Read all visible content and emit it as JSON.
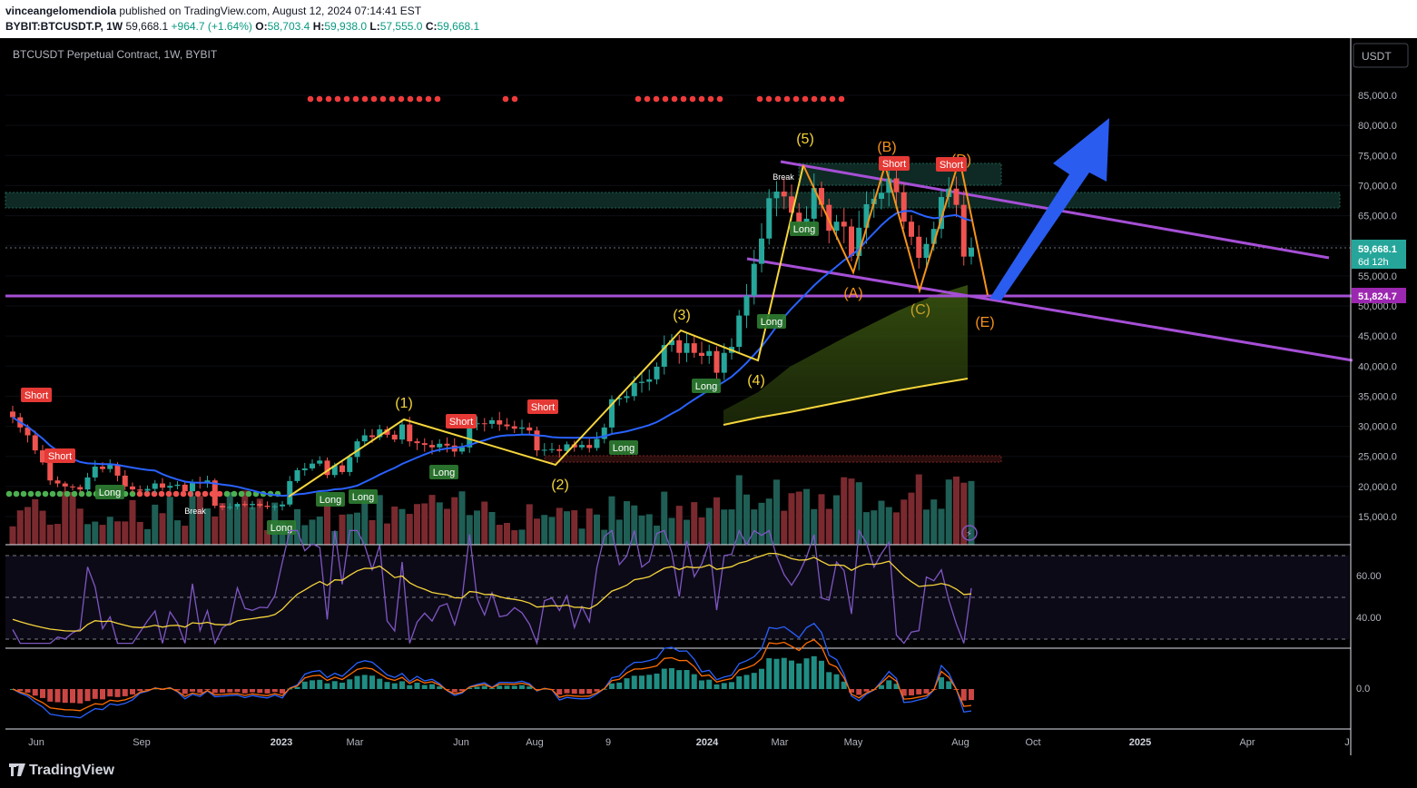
{
  "header": {
    "author": "vinceangelomendiola",
    "published": "published on TradingView.com, August 12, 2024 07:14:41 EST",
    "symbol": "BYBIT:BTCUSDT.P, 1W",
    "last": "59,668.1",
    "change": "+964.7 (+1.64%)",
    "o_label": "O:",
    "o": "58,703.4",
    "h_label": "H:",
    "h": "59,938.0",
    "l_label": "L:",
    "l": "57,555.0",
    "c_label": "C:",
    "c": "59,668.1"
  },
  "legend_title": "BTCUSDT Perpetual Contract, 1W, BYBIT",
  "currency_button": "USDT",
  "price_tag": {
    "value": "59,668.1",
    "countdown": "6d 12h"
  },
  "line_tag": "51,824.7",
  "footer_brand": "TradingView",
  "colors": {
    "up": "#26a69a",
    "down": "#ef5350",
    "ma": "#2962ff",
    "channel": "#9c4fc7",
    "waves": "#f5d53b",
    "correction": "#f7931a",
    "arrow": "#2a5cf0"
  },
  "chart_data": [
    {
      "type": "candlestick",
      "title": "BTCUSDT Perpetual Contract, 1W, BYBIT",
      "y_axis_ticks": [
        "85,000.0",
        "80,000.0",
        "75,000.0",
        "70,000.0",
        "65,000.0",
        "60,000.0",
        "55,000.0",
        "50,000.0",
        "45,000.0",
        "40,000.0",
        "35,000.0",
        "30,000.0",
        "25,000.0",
        "20,000.0",
        "15,000.0"
      ],
      "x_axis_ticks": [
        "Jun",
        "Sep",
        "2023",
        "Mar",
        "Jun",
        "Aug",
        "9",
        "2024",
        "Mar",
        "May",
        "Aug",
        "Oct",
        "2025",
        "Apr",
        "J"
      ],
      "ylim": [
        12000,
        88000
      ],
      "horizontal_line": 51824.7,
      "last_price": 59668.1,
      "close_series_approx": [
        31500,
        29800,
        28500,
        26000,
        24000,
        21000,
        20500,
        20000,
        19900,
        19500,
        21500,
        23300,
        22900,
        23600,
        21800,
        20000,
        19500,
        19300,
        19600,
        20500,
        19800,
        20100,
        20300,
        19200,
        20700,
        20500,
        21000,
        16800,
        16500,
        16600,
        17100,
        16900,
        17100,
        16800,
        16600,
        16700,
        17000,
        20900,
        22700,
        23000,
        23800,
        24300,
        21900,
        23500,
        22400,
        24900,
        27500,
        28500,
        28200,
        29500,
        28600,
        27800,
        30300,
        27500,
        27200,
        26900,
        26500,
        27100,
        26800,
        25800,
        26500,
        30500,
        30500,
        30400,
        31000,
        30300,
        30000,
        29600,
        29800,
        29300,
        26000,
        26100,
        26200,
        25900,
        27000,
        26500,
        26900,
        26400,
        27900,
        29800,
        34500,
        34700,
        35000,
        37200,
        37400,
        37800,
        39900,
        43500,
        44300,
        42200,
        43800,
        42200,
        41700,
        42500,
        38900,
        42200,
        43200,
        48400,
        51700,
        57000,
        61200,
        67900,
        69000,
        68200,
        65500,
        63900,
        64500,
        69600,
        66800,
        62500,
        64000,
        63200,
        58300,
        63000,
        66900,
        67800,
        68800,
        71200,
        68900,
        64000,
        61500,
        58000,
        60300,
        62800,
        68100,
        69500,
        66800,
        58200,
        59668
      ]
    },
    {
      "type": "bar",
      "title": "Volume",
      "description": "weekly volume bars, colored by candle direction"
    },
    {
      "type": "line",
      "title": "RSI",
      "y_axis_ticks": [
        "60.00",
        "40.00"
      ]
    },
    {
      "type": "bar",
      "title": "MACD",
      "y_axis_ticks": [
        "0.0"
      ]
    }
  ],
  "annotations": {
    "impulse_waves": [
      "(1)",
      "(2)",
      "(3)",
      "(4)",
      "(5)"
    ],
    "correction_waves": [
      "(A)",
      "(B)",
      "(C)",
      "(D)",
      "(E)"
    ],
    "long_tags": [
      "Long",
      "Long",
      "Long",
      "Long",
      "Long",
      "Long",
      "Long",
      "Long",
      "Long",
      "Long"
    ],
    "short_tags": [
      "Short",
      "Short",
      "Short",
      "Short",
      "Short",
      "Short"
    ],
    "break_tags": [
      "Break",
      "Break"
    ]
  }
}
